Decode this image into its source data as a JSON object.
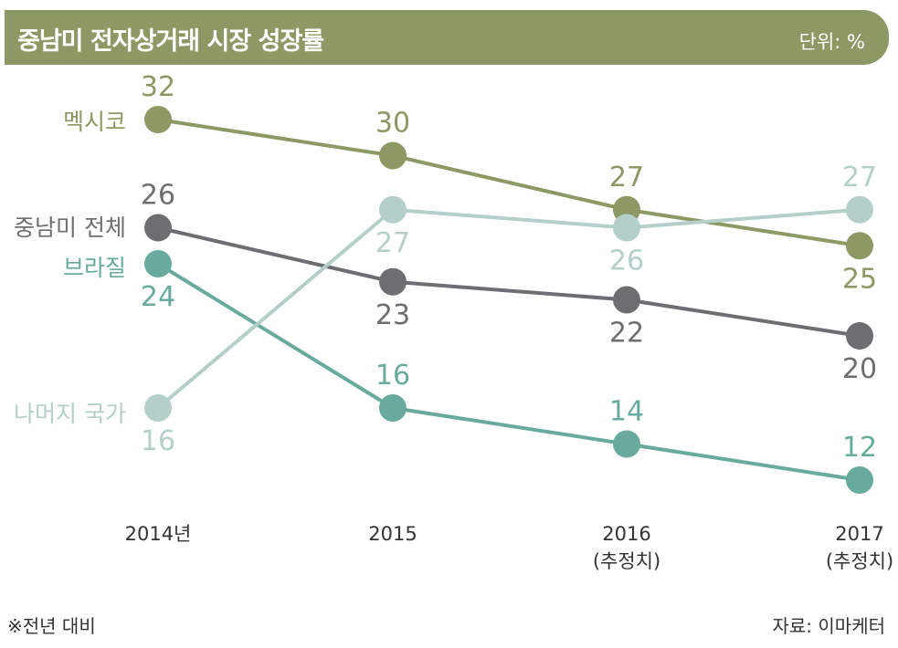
{
  "header": {
    "title": "중남미 전자상거래 시장 성장률",
    "unit": "단위: %"
  },
  "chart_data": {
    "type": "line",
    "title": "중남미 전자상거래 시장 성장률",
    "unit": "단위: %",
    "categories": [
      {
        "line1": "2014년",
        "line2": ""
      },
      {
        "line1": "2015",
        "line2": ""
      },
      {
        "line1": "2016",
        "line2": "(추정치)"
      },
      {
        "line1": "2017",
        "line2": "(추정치)"
      }
    ],
    "series": [
      {
        "name": "멕시코",
        "values": [
          32,
          30,
          27,
          25
        ],
        "color": "#8d9964"
      },
      {
        "name": "중남미 전체",
        "values": [
          26,
          23,
          22,
          20
        ],
        "color": "#6d6e72"
      },
      {
        "name": "브라질",
        "values": [
          24,
          16,
          14,
          12
        ],
        "color": "#68ab9e"
      },
      {
        "name": "나머지 국가",
        "values": [
          16,
          27,
          26,
          27
        ],
        "color": "#b4cfc9"
      }
    ],
    "legend": "left, labels beside first points",
    "grid": false
  },
  "footer": {
    "note": "※전년 대비",
    "source": "자료: 이마케터"
  }
}
